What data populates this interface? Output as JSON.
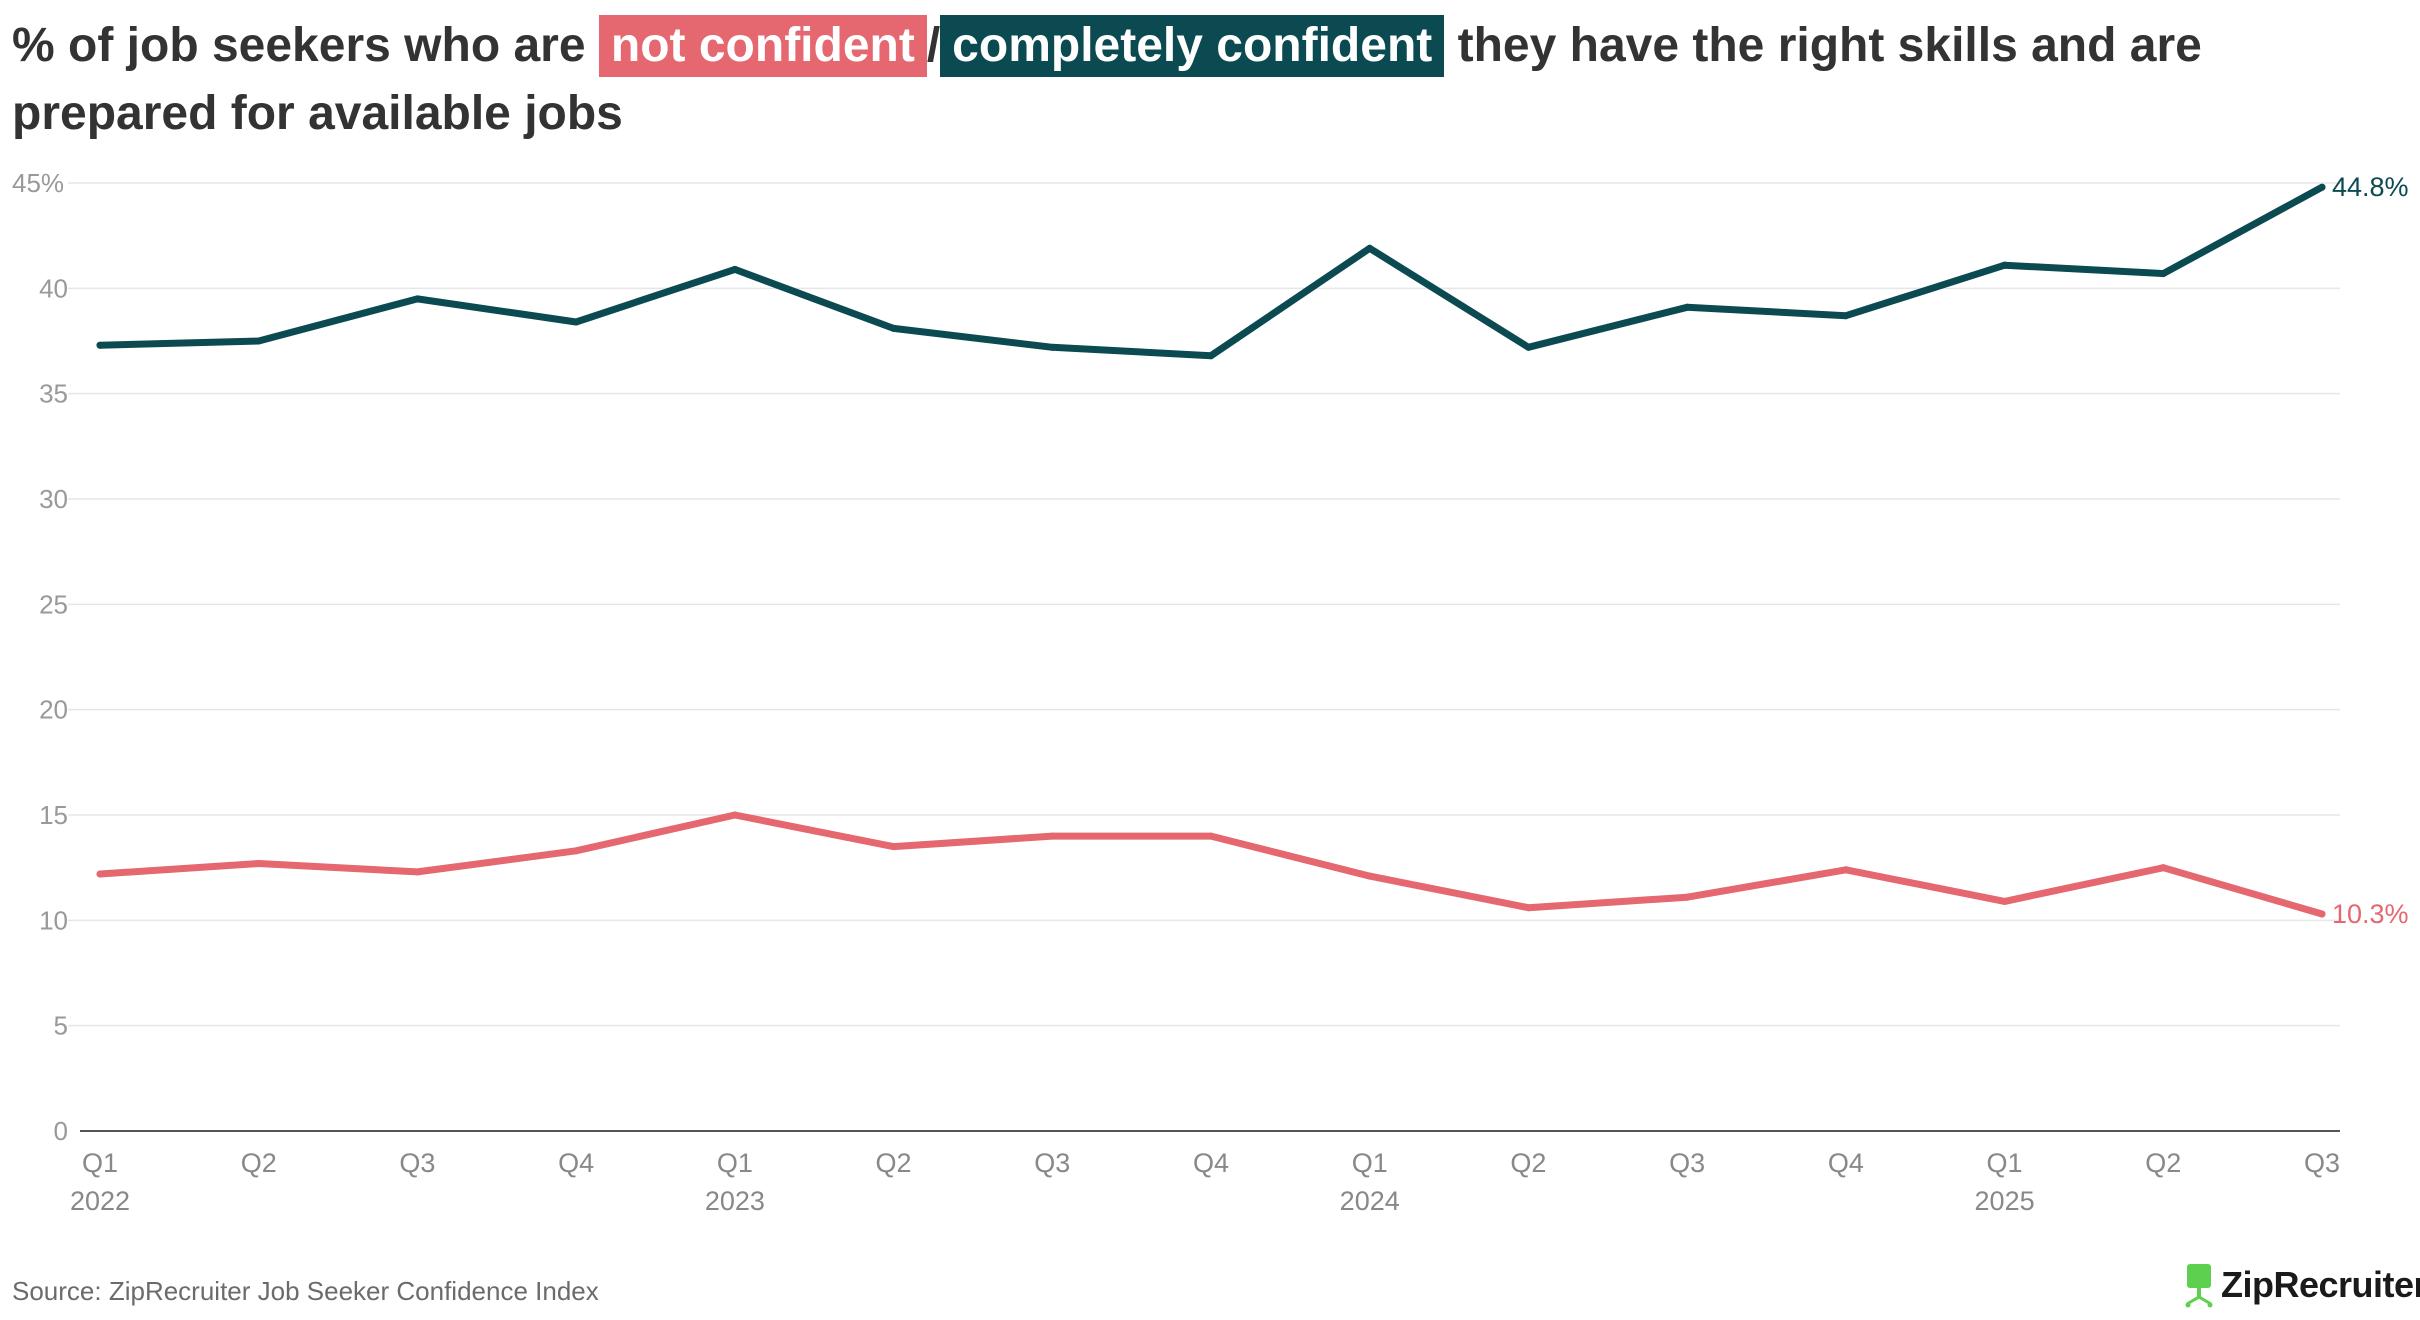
{
  "title": {
    "prefix": "% of job seekers who are",
    "highlight_1": "not confident",
    "separator": "/",
    "highlight_2": "completely confident",
    "suffix": "they have the right skills and are prepared for available jobs"
  },
  "source": "Source: ZipRecruiter Job Seeker Confidence Index",
  "logo": {
    "text": "ZipRecruiter",
    "reg": "®",
    "icon": "chair-icon",
    "icon_color": "#5ed04f"
  },
  "colors": {
    "not_confident": "#e5676f",
    "completely_confident": "#0b4a51"
  },
  "chart_data": {
    "type": "line",
    "categories": [
      "Q1",
      "Q2",
      "Q3",
      "Q4",
      "Q1",
      "Q2",
      "Q3",
      "Q4",
      "Q1",
      "Q2",
      "Q3",
      "Q4",
      "Q1",
      "Q2",
      "Q3"
    ],
    "year_labels": [
      {
        "index": 0,
        "label": "2022"
      },
      {
        "index": 4,
        "label": "2023"
      },
      {
        "index": 8,
        "label": "2024"
      },
      {
        "index": 12,
        "label": "2025"
      }
    ],
    "series": [
      {
        "name": "completely confident",
        "color": "#0b4a51",
        "values": [
          37.3,
          37.5,
          39.5,
          38.4,
          40.9,
          38.1,
          37.2,
          36.8,
          41.9,
          37.2,
          39.1,
          38.7,
          41.1,
          40.7,
          44.8
        ],
        "end_label": "44.8%"
      },
      {
        "name": "not confident",
        "color": "#e5676f",
        "values": [
          12.2,
          12.7,
          12.3,
          13.3,
          15.0,
          13.5,
          14.0,
          14.0,
          12.1,
          10.6,
          11.1,
          12.4,
          10.9,
          12.5,
          10.3
        ],
        "end_label": "10.3%"
      }
    ],
    "y_ticks": [
      "45%",
      "40",
      "35",
      "30",
      "25",
      "20",
      "15",
      "10",
      "5",
      "0"
    ],
    "ylim": [
      0,
      45
    ],
    "grid": true,
    "legend": "title"
  }
}
